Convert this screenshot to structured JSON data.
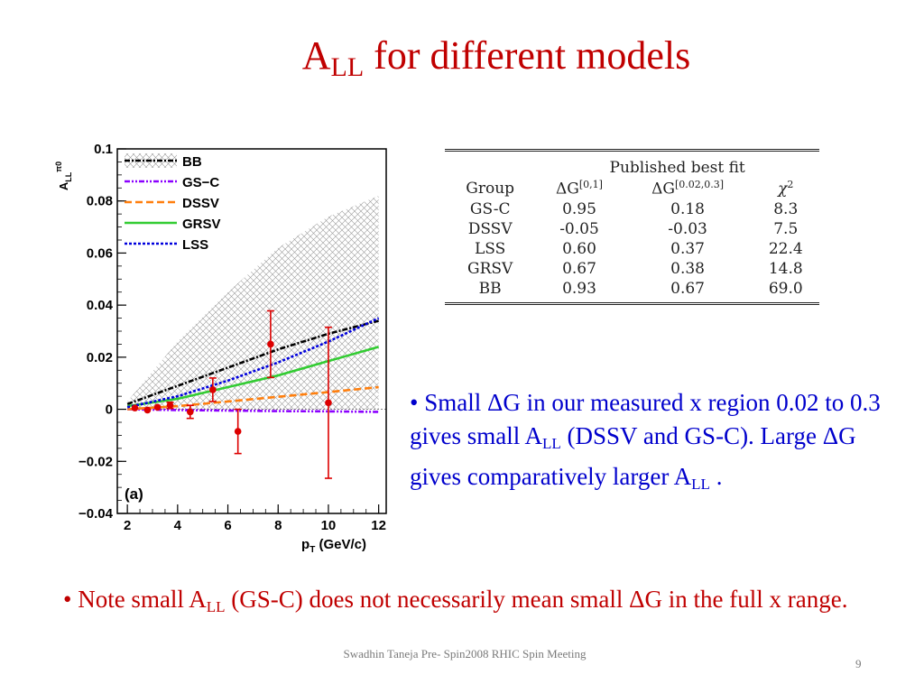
{
  "slide": {
    "title_main": "A",
    "title_sub": "LL",
    "title_rest": " for different models",
    "footer": "Swadhin Taneja  Pre- Spin2008  RHIC Spin Meeting",
    "page_number": "9"
  },
  "bullets": {
    "b1_pre": "• Small ",
    "b1_delta": "ΔG",
    "b1_mid": " in our measured x region 0.02 to 0.3  gives small A",
    "b1_sub": "LL",
    "b1_mid2": " (DSSV and GS-C).  Large ",
    "b1_delta2": "ΔG",
    "b1_end": " gives comparatively larger A",
    "b1_sub2": "LL",
    "b1_tail": " .",
    "b2_pre": "• Note small A",
    "b2_sub": "LL",
    "b2_mid": " (GS-C) does not necessarily mean small ",
    "b2_delta": "ΔG",
    "b2_end": " in the full x range."
  },
  "table": {
    "super_header": "Published best fit",
    "headers": [
      "Group",
      "ΔG",
      "ΔG",
      "χ"
    ],
    "header_sups": [
      "",
      "[0,1]",
      "[0.02,0.3]",
      "2"
    ],
    "rows": [
      [
        "GS-C",
        "0.95",
        "0.18",
        "8.3"
      ],
      [
        "DSSV",
        "-0.05",
        "-0.03",
        "7.5"
      ],
      [
        "LSS",
        "0.60",
        "0.37",
        "22.4"
      ],
      [
        "GRSV",
        "0.67",
        "0.38",
        "14.8"
      ],
      [
        "BB",
        "0.93",
        "0.67",
        "69.0"
      ]
    ]
  },
  "chart_data": {
    "type": "line",
    "panel_label": "(a)",
    "xlabel": "p_T (GeV/c)",
    "ylabel": "A_LL^π0",
    "xlim": [
      1.6,
      12.3
    ],
    "ylim": [
      -0.04,
      0.1
    ],
    "xticks": [
      2,
      4,
      6,
      8,
      10,
      12
    ],
    "yticks": [
      -0.04,
      -0.02,
      0,
      0.02,
      0.04,
      0.06,
      0.08,
      0.1
    ],
    "ytick_labels": [
      "−0.04",
      "−0.02",
      "0",
      "0.02",
      "0.04",
      "0.06",
      "0.08",
      "0.1"
    ],
    "legend_position": "top-left",
    "series": [
      {
        "name": "BB",
        "style": "dash-dot",
        "color": "#000000",
        "x": [
          2,
          4,
          6,
          8,
          10,
          12
        ],
        "y": [
          0.002,
          0.009,
          0.016,
          0.023,
          0.029,
          0.034
        ]
      },
      {
        "name": "GS−C",
        "style": "dash-dot-dot",
        "color": "#8b00ff",
        "x": [
          2,
          4,
          6,
          8,
          10,
          12
        ],
        "y": [
          0.0,
          -0.0003,
          -0.0005,
          -0.0007,
          -0.0008,
          -0.001
        ]
      },
      {
        "name": "DSSV",
        "style": "dashed",
        "color": "#ff7f0e",
        "x": [
          2,
          4,
          6,
          8,
          10,
          12
        ],
        "y": [
          0.0,
          0.0012,
          0.003,
          0.0048,
          0.0066,
          0.0085
        ]
      },
      {
        "name": "GRSV",
        "style": "solid",
        "color": "#33cc33",
        "x": [
          2,
          4,
          6,
          8,
          10,
          12
        ],
        "y": [
          0.0012,
          0.004,
          0.0085,
          0.013,
          0.0185,
          0.024
        ]
      },
      {
        "name": "LSS",
        "style": "dotted",
        "color": "#0000dd",
        "x": [
          2,
          4,
          6,
          8,
          10,
          12
        ],
        "y": [
          0.0008,
          0.005,
          0.011,
          0.018,
          0.026,
          0.035
        ]
      }
    ],
    "band": {
      "name": "BB",
      "x": [
        2,
        4,
        6,
        8,
        10,
        12
      ],
      "upper": [
        0.003,
        0.026,
        0.045,
        0.062,
        0.074,
        0.082
      ],
      "lower": [
        0.0,
        0.0,
        0.0,
        0.0,
        0.0,
        0.0
      ]
    },
    "data_points": {
      "color": "#dd0000",
      "x": [
        2.3,
        2.8,
        3.2,
        3.7,
        4.5,
        5.4,
        6.4,
        7.7,
        10.0
      ],
      "y": [
        0.0005,
        -0.0003,
        0.0008,
        0.0015,
        -0.001,
        0.0075,
        -0.0085,
        0.025,
        0.0025
      ],
      "err": [
        0.0007,
        0.0008,
        0.0009,
        0.0012,
        0.0025,
        0.0045,
        0.0085,
        0.0128,
        0.029
      ]
    }
  }
}
